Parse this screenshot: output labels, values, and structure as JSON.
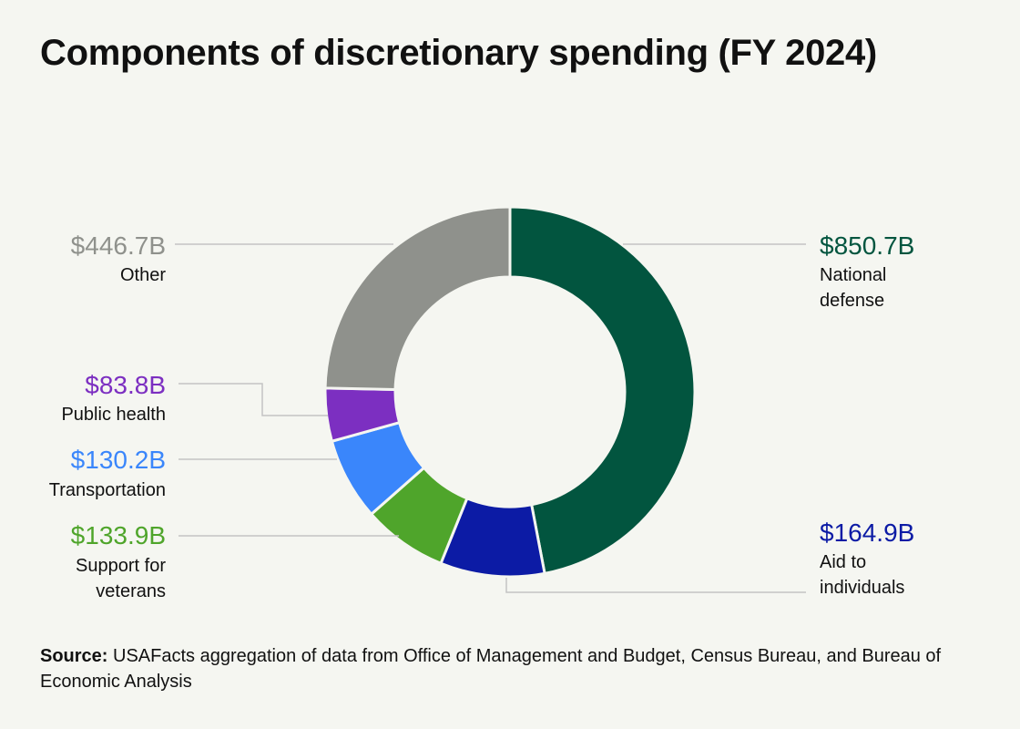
{
  "chart_data": {
    "type": "pie",
    "title": "Components of discretionary spending (FY 2024)",
    "slices": [
      {
        "label": "National defense",
        "value": 850.7,
        "value_label": "$850.7B",
        "color": "#02553f"
      },
      {
        "label": "Aid to individuals",
        "value": 164.9,
        "value_label": "$164.9B",
        "color": "#0c1ba5"
      },
      {
        "label": "Support for veterans",
        "value": 133.9,
        "value_label": "$133.9B",
        "color": "#4fa52b"
      },
      {
        "label": "Transportation",
        "value": 130.2,
        "value_label": "$130.2B",
        "color": "#3a86fb"
      },
      {
        "label": "Public health",
        "value": 83.8,
        "value_label": "$83.8B",
        "color": "#7c2fc1"
      },
      {
        "label": "Other",
        "value": 446.7,
        "value_label": "$446.7B",
        "color": "#8f918c"
      }
    ],
    "legend": "none"
  },
  "source": {
    "label": "Source:",
    "text": " USAFacts aggregation of data from Office of Management and Budget, Census Bureau, and Bureau of Economic Analysis"
  },
  "colors": {
    "background": "#f5f6f1",
    "leader_line": "#c4c4c4"
  }
}
